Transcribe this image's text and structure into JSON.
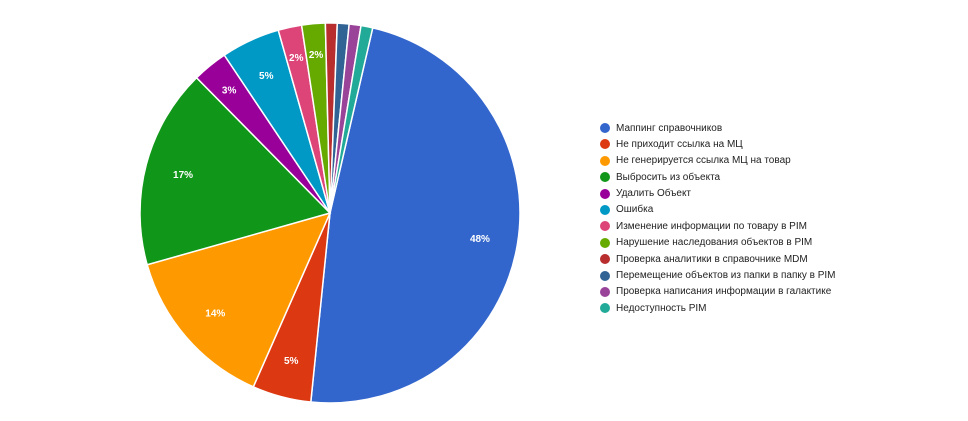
{
  "chart_data": {
    "type": "pie",
    "categories": [
      "Маппинг справочников",
      "Не приходит ссылка на МЦ",
      "Не генерируется ссылка МЦ на товар",
      "Выбросить из объекта",
      "Удалить Объект",
      "Ошибка",
      "Изменение информации по товару в PIM",
      "Нарушение наследования объектов в PIM",
      "Проверка аналитики в справочнике MDM",
      "Перемещение объектов из папки в папку в PIM",
      "Проверка написания информации в галактике",
      "Недоступность PIM"
    ],
    "values": [
      48,
      5,
      14,
      17,
      3,
      5,
      2,
      2,
      1,
      1,
      1,
      1
    ],
    "labels": [
      "48%",
      "5%",
      "14%",
      "17%",
      "3%",
      "5%",
      "2%",
      "2%",
      "",
      "",
      "",
      ""
    ],
    "colors": [
      "#3366cc",
      "#dc3912",
      "#ff9900",
      "#109618",
      "#990099",
      "#0099c6",
      "#dd4477",
      "#66aa00",
      "#b82e2e",
      "#316395",
      "#994499",
      "#22aa99"
    ],
    "start_angle_deg": 13,
    "direction": "clockwise",
    "legend_position": "right"
  }
}
